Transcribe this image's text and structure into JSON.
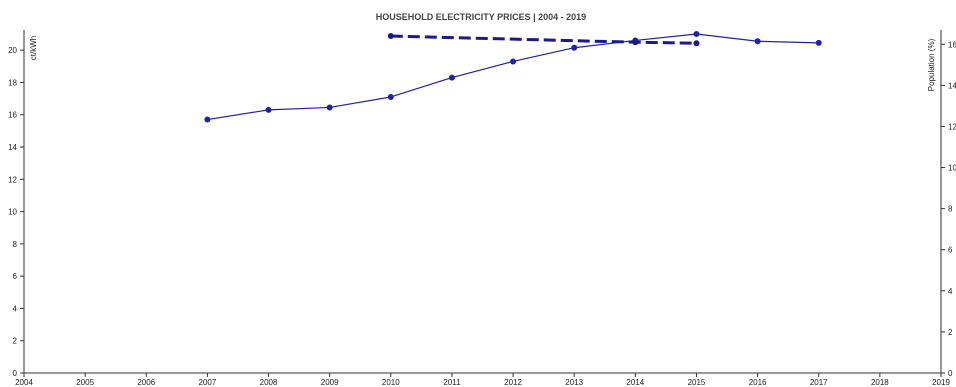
{
  "chart_data": {
    "type": "line",
    "title": "HOUSEHOLD ELECTRICITY PRICES | 2004 - 2019",
    "ylabel": "ct/kWh",
    "y2label": "Population (%)",
    "xlim": [
      2004,
      2019
    ],
    "ylim": [
      0,
      21
    ],
    "y2lim": [
      0,
      16.5
    ],
    "x_ticks": [
      "2004",
      "2005",
      "2006",
      "2007",
      "2008",
      "2009",
      "2010",
      "2011",
      "2012",
      "2013",
      "2014",
      "2015",
      "2016",
      "2017",
      "2018",
      "2019"
    ],
    "y_ticks": [
      "0",
      "2",
      "4",
      "6",
      "8",
      "10",
      "12",
      "14",
      "16",
      "18",
      "20"
    ],
    "y2_ticks": [
      "0",
      "2",
      "4",
      "6",
      "8",
      "10",
      "12",
      "14",
      "16"
    ],
    "grid": false,
    "series": [
      {
        "axis": "left",
        "style": "solid",
        "color": "#2020b0",
        "x": [
          2007,
          2008,
          2009,
          2010,
          2011,
          2012,
          2013,
          2014,
          2015,
          2016,
          2017
        ],
        "values": [
          15.7,
          16.3,
          16.45,
          17.1,
          18.3,
          19.3,
          20.15,
          20.6,
          21.0,
          20.55,
          20.45
        ]
      },
      {
        "axis": "right",
        "style": "dashed",
        "color": "#1a1a8c",
        "x": [
          2010,
          2014,
          2015
        ],
        "values": [
          16.4,
          16.1,
          16.05
        ]
      }
    ]
  }
}
